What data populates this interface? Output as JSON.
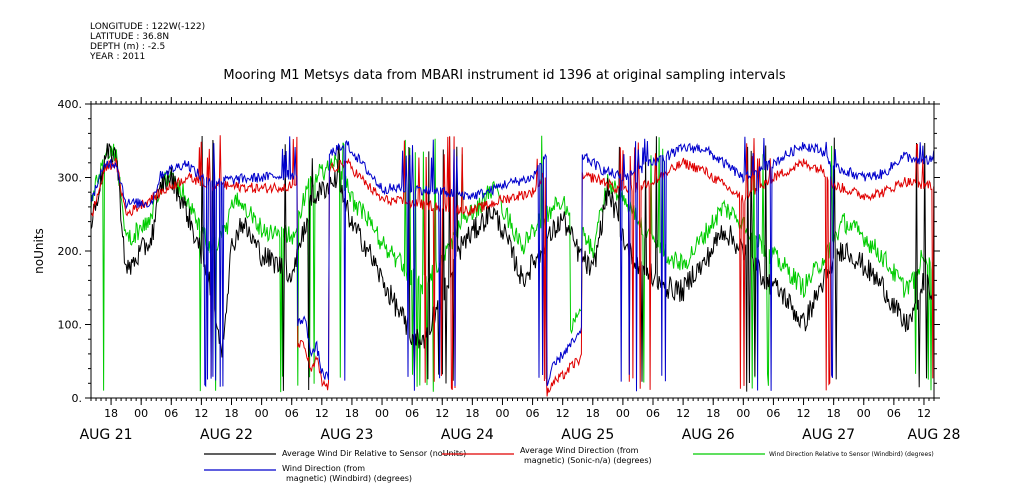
{
  "header": {
    "longitude": "LONGITUDE : 122W(-122)",
    "latitude": "LATITUDE : 36.8N",
    "depth": "DEPTH (m) : -2.5",
    "year": "YEAR : 2011"
  },
  "chart_data": {
    "type": "line",
    "title": "Mooring M1 Metsys data from MBARI instrument id 1396 at original sampling intervals",
    "ylabel": "noUnits",
    "xlabel": "",
    "ylim": [
      0,
      400
    ],
    "y_ticks": [
      "0.",
      "100.",
      "200.",
      "300.",
      "400."
    ],
    "x_range_hours": [
      14,
      182
    ],
    "hour_ticks": [
      {
        "h": 18,
        "label": "18"
      },
      {
        "h": 24,
        "label": "00"
      },
      {
        "h": 30,
        "label": "06"
      },
      {
        "h": 36,
        "label": "12"
      },
      {
        "h": 42,
        "label": "18"
      },
      {
        "h": 48,
        "label": "00"
      },
      {
        "h": 54,
        "label": "06"
      },
      {
        "h": 60,
        "label": "12"
      },
      {
        "h": 66,
        "label": "18"
      },
      {
        "h": 72,
        "label": "00"
      },
      {
        "h": 78,
        "label": "06"
      },
      {
        "h": 84,
        "label": "12"
      },
      {
        "h": 90,
        "label": "18"
      },
      {
        "h": 96,
        "label": "00"
      },
      {
        "h": 102,
        "label": "06"
      },
      {
        "h": 108,
        "label": "12"
      },
      {
        "h": 114,
        "label": "18"
      },
      {
        "h": 120,
        "label": "00"
      },
      {
        "h": 126,
        "label": "06"
      },
      {
        "h": 132,
        "label": "12"
      },
      {
        "h": 138,
        "label": "18"
      },
      {
        "h": 144,
        "label": "00"
      },
      {
        "h": 150,
        "label": "06"
      },
      {
        "h": 156,
        "label": "12"
      },
      {
        "h": 162,
        "label": "18"
      },
      {
        "h": 168,
        "label": "00"
      },
      {
        "h": 174,
        "label": "06"
      },
      {
        "h": 180,
        "label": "12"
      }
    ],
    "date_labels": [
      {
        "h": 17,
        "label": "AUG 21"
      },
      {
        "h": 41,
        "label": "AUG 22"
      },
      {
        "h": 65,
        "label": "AUG 23"
      },
      {
        "h": 89,
        "label": "AUG 24"
      },
      {
        "h": 113,
        "label": "AUG 25"
      },
      {
        "h": 137,
        "label": "AUG 26"
      },
      {
        "h": 161,
        "label": "AUG 27"
      },
      {
        "h": 182,
        "label": "AUG 28"
      }
    ],
    "legend_placement": "bottom",
    "series": [
      {
        "key": "black",
        "color": "#000000",
        "name_lines": [
          "Average Wind Dir Relative to Sensor (noUnits)"
        ]
      },
      {
        "key": "red",
        "color": "#e00000",
        "name_lines": [
          "Average Wind Direction (from",
          "magnetic) (Sonic-n/a) (degrees)"
        ]
      },
      {
        "key": "green",
        "color": "#00cc00",
        "name_lines": [
          "Wind Direction Relative to Sensor (Windbird) (degrees)"
        ]
      },
      {
        "key": "blue",
        "color": "#0000cc",
        "name_lines": [
          "Wind Direction (from",
          "magnetic) (Windbird) (degrees)"
        ]
      }
    ],
    "base_curves": {
      "blue": [
        [
          14,
          270
        ],
        [
          17,
          320
        ],
        [
          19,
          320
        ],
        [
          21,
          265
        ],
        [
          26,
          265
        ],
        [
          28,
          305
        ],
        [
          33,
          320
        ],
        [
          36,
          300
        ],
        [
          38,
          295
        ],
        [
          48,
          300
        ],
        [
          56,
          305
        ],
        [
          61,
          330
        ],
        [
          65,
          345
        ],
        [
          69,
          310
        ],
        [
          72,
          285
        ],
        [
          78,
          285
        ],
        [
          84,
          280
        ],
        [
          90,
          275
        ],
        [
          93,
          280
        ],
        [
          96,
          290
        ],
        [
          102,
          300
        ],
        [
          106,
          345
        ],
        [
          108,
          350
        ],
        [
          110,
          340
        ],
        [
          114,
          320
        ],
        [
          116,
          310
        ],
        [
          120,
          300
        ],
        [
          126,
          320
        ],
        [
          132,
          340
        ],
        [
          136,
          340
        ],
        [
          138,
          330
        ],
        [
          144,
          300
        ],
        [
          150,
          320
        ],
        [
          156,
          345
        ],
        [
          160,
          335
        ],
        [
          162,
          315
        ],
        [
          168,
          300
        ],
        [
          172,
          305
        ],
        [
          176,
          330
        ],
        [
          180,
          320
        ],
        [
          182,
          330
        ]
      ],
      "red": [
        [
          14,
          245
        ],
        [
          17,
          315
        ],
        [
          19,
          320
        ],
        [
          21,
          250
        ],
        [
          28,
          280
        ],
        [
          33,
          300
        ],
        [
          36,
          295
        ],
        [
          38,
          290
        ],
        [
          48,
          285
        ],
        [
          56,
          290
        ],
        [
          61,
          310
        ],
        [
          65,
          320
        ],
        [
          69,
          290
        ],
        [
          72,
          270
        ],
        [
          78,
          265
        ],
        [
          84,
          260
        ],
        [
          90,
          255
        ],
        [
          93,
          262
        ],
        [
          96,
          270
        ],
        [
          102,
          280
        ],
        [
          106,
          320
        ],
        [
          108,
          320
        ],
        [
          110,
          300
        ],
        [
          114,
          300
        ],
        [
          116,
          295
        ],
        [
          120,
          280
        ],
        [
          126,
          295
        ],
        [
          132,
          320
        ],
        [
          136,
          310
        ],
        [
          138,
          300
        ],
        [
          144,
          270
        ],
        [
          150,
          300
        ],
        [
          156,
          320
        ],
        [
          160,
          310
        ],
        [
          162,
          290
        ],
        [
          168,
          275
        ],
        [
          172,
          280
        ],
        [
          176,
          295
        ],
        [
          180,
          290
        ],
        [
          182,
          290
        ]
      ],
      "green": [
        [
          14,
          265
        ],
        [
          17,
          340
        ],
        [
          19,
          335
        ],
        [
          21,
          215
        ],
        [
          24,
          230
        ],
        [
          26,
          245
        ],
        [
          28,
          295
        ],
        [
          30,
          300
        ],
        [
          33,
          275
        ],
        [
          36,
          230
        ],
        [
          38,
          200
        ],
        [
          41,
          230
        ],
        [
          42,
          260
        ],
        [
          44,
          270
        ],
        [
          48,
          230
        ],
        [
          54,
          220
        ],
        [
          58,
          300
        ],
        [
          63,
          320
        ],
        [
          66,
          270
        ],
        [
          69,
          245
        ],
        [
          72,
          210
        ],
        [
          78,
          165
        ],
        [
          80,
          150
        ],
        [
          84,
          190
        ],
        [
          88,
          240
        ],
        [
          90,
          250
        ],
        [
          94,
          285
        ],
        [
          96,
          260
        ],
        [
          100,
          205
        ],
        [
          104,
          245
        ],
        [
          108,
          270
        ],
        [
          111,
          235
        ],
        [
          114,
          200
        ],
        [
          117,
          295
        ],
        [
          121,
          265
        ],
        [
          125,
          220
        ],
        [
          129,
          195
        ],
        [
          132,
          180
        ],
        [
          134,
          200
        ],
        [
          136,
          220
        ],
        [
          140,
          260
        ],
        [
          144,
          240
        ],
        [
          148,
          205
        ],
        [
          152,
          180
        ],
        [
          156,
          150
        ],
        [
          160,
          190
        ],
        [
          164,
          240
        ],
        [
          168,
          220
        ],
        [
          172,
          190
        ],
        [
          176,
          150
        ],
        [
          178,
          160
        ],
        [
          180,
          200
        ],
        [
          182,
          180
        ]
      ],
      "black": [
        [
          14,
          235
        ],
        [
          17,
          330
        ],
        [
          19,
          335
        ],
        [
          21,
          170
        ],
        [
          24,
          200
        ],
        [
          26,
          215
        ],
        [
          28,
          290
        ],
        [
          30,
          300
        ],
        [
          33,
          255
        ],
        [
          36,
          195
        ],
        [
          38,
          150
        ],
        [
          40,
          60
        ],
        [
          42,
          205
        ],
        [
          44,
          240
        ],
        [
          48,
          195
        ],
        [
          54,
          170
        ],
        [
          58,
          270
        ],
        [
          63,
          300
        ],
        [
          66,
          235
        ],
        [
          69,
          205
        ],
        [
          72,
          160
        ],
        [
          78,
          85
        ],
        [
          80,
          75
        ],
        [
          84,
          140
        ],
        [
          88,
          210
        ],
        [
          90,
          225
        ],
        [
          94,
          255
        ],
        [
          96,
          230
        ],
        [
          100,
          160
        ],
        [
          104,
          205
        ],
        [
          108,
          245
        ],
        [
          111,
          200
        ],
        [
          114,
          170
        ],
        [
          117,
          285
        ],
        [
          121,
          200
        ],
        [
          125,
          170
        ],
        [
          129,
          150
        ],
        [
          132,
          145
        ],
        [
          134,
          170
        ],
        [
          136,
          180
        ],
        [
          140,
          230
        ],
        [
          144,
          200
        ],
        [
          148,
          165
        ],
        [
          152,
          140
        ],
        [
          156,
          100
        ],
        [
          160,
          160
        ],
        [
          164,
          205
        ],
        [
          168,
          180
        ],
        [
          172,
          150
        ],
        [
          176,
          100
        ],
        [
          178,
          110
        ],
        [
          180,
          160
        ],
        [
          182,
          140
        ]
      ]
    },
    "spike_intervals": [
      [
        35.5,
        41
      ],
      [
        52,
        59
      ],
      [
        63,
        65
      ],
      [
        76,
        88
      ],
      [
        102.5,
        105
      ],
      [
        119,
        129
      ],
      [
        143,
        150
      ],
      [
        160.5,
        163
      ],
      [
        177.5,
        182
      ]
    ],
    "low_segments": [
      {
        "series": "blue",
        "start": 55.2,
        "end": 61.5,
        "points": [
          [
            55.2,
            100
          ],
          [
            56.5,
            110
          ],
          [
            58,
            60
          ],
          [
            59,
            70
          ],
          [
            60,
            35
          ],
          [
            61.5,
            25
          ]
        ]
      },
      {
        "series": "red",
        "start": 55.2,
        "end": 61.5,
        "points": [
          [
            55.2,
            75
          ],
          [
            56.5,
            70
          ],
          [
            58,
            35
          ],
          [
            59,
            55
          ],
          [
            60,
            20
          ],
          [
            61.5,
            15
          ]
        ]
      },
      {
        "series": "blue",
        "start": 104.8,
        "end": 111.8,
        "points": [
          [
            104.8,
            15
          ],
          [
            106,
            40
          ],
          [
            108,
            60
          ],
          [
            110,
            75
          ],
          [
            111.8,
            90
          ]
        ]
      },
      {
        "series": "red",
        "start": 104.8,
        "end": 111.8,
        "points": [
          [
            104.8,
            5
          ],
          [
            106,
            20
          ],
          [
            108,
            30
          ],
          [
            110,
            45
          ],
          [
            111.8,
            55
          ]
        ]
      },
      {
        "series": "green",
        "start": 109.5,
        "end": 111.8,
        "points": [
          [
            109.5,
            90
          ],
          [
            110.5,
            110
          ],
          [
            111.8,
            120
          ]
        ]
      }
    ]
  }
}
